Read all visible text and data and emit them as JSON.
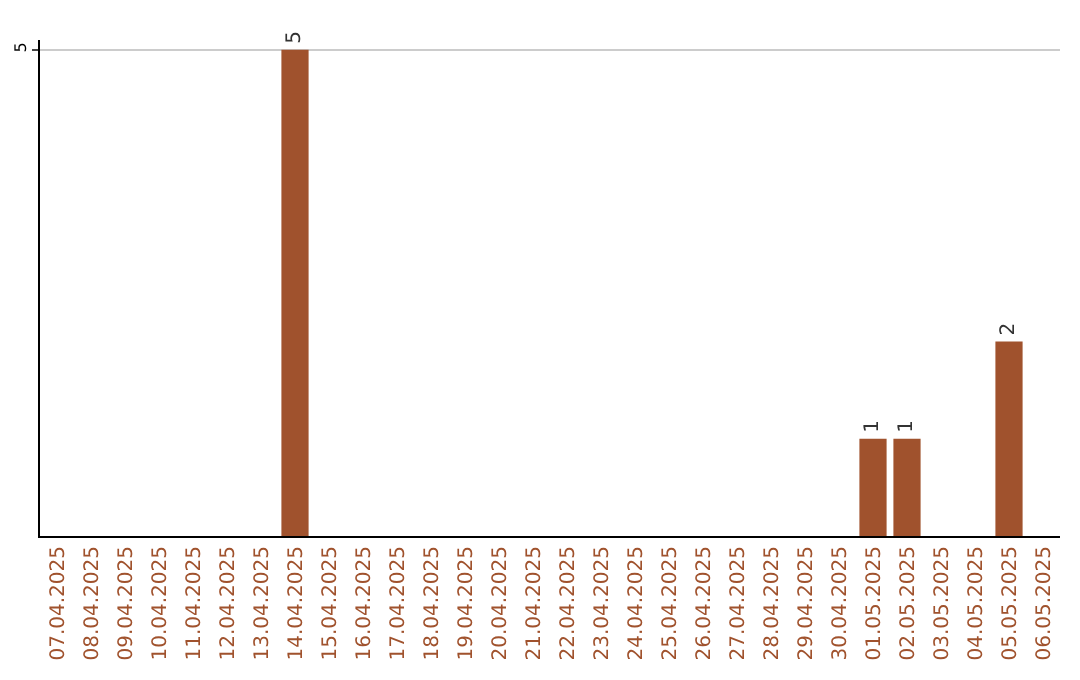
{
  "chart_data": {
    "type": "bar",
    "categories": [
      "07.04.2025",
      "08.04.2025",
      "09.04.2025",
      "10.04.2025",
      "11.04.2025",
      "12.04.2025",
      "13.04.2025",
      "14.04.2025",
      "15.04.2025",
      "16.04.2025",
      "17.04.2025",
      "18.04.2025",
      "19.04.2025",
      "20.04.2025",
      "21.04.2025",
      "22.04.2025",
      "23.04.2025",
      "24.04.2025",
      "25.04.2025",
      "26.04.2025",
      "27.04.2025",
      "28.04.2025",
      "29.04.2025",
      "30.04.2025",
      "01.05.2025",
      "02.05.2025",
      "03.05.2025",
      "04.05.2025",
      "05.05.2025",
      "06.05.2025"
    ],
    "values": [
      0,
      0,
      0,
      0,
      0,
      0,
      0,
      5,
      0,
      0,
      0,
      0,
      0,
      0,
      0,
      0,
      0,
      0,
      0,
      0,
      0,
      0,
      0,
      0,
      1,
      1,
      0,
      0,
      2,
      0
    ],
    "value_labels": [
      null,
      null,
      null,
      null,
      null,
      null,
      null,
      "5",
      null,
      null,
      null,
      null,
      null,
      null,
      null,
      null,
      null,
      null,
      null,
      null,
      null,
      null,
      null,
      null,
      "1",
      "1",
      null,
      null,
      "2",
      null
    ],
    "color": "#a0522d",
    "ylim": [
      0,
      5.1
    ],
    "yticks": [
      5
    ],
    "grid": "y"
  }
}
